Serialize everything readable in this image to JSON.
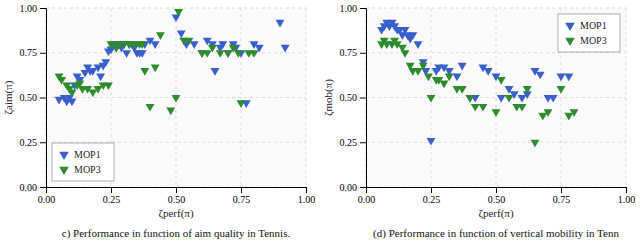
{
  "chart_data": [
    {
      "type": "scatter",
      "title": "c) Performance in function of aim quality in Tennis.",
      "x_label": "ζperf(π)",
      "y_label": "ζaim(π)",
      "xlim": [
        0.0,
        1.0
      ],
      "ylim": [
        0.0,
        1.0
      ],
      "xticks": [
        {
          "value": 0.0,
          "label": "0.00"
        },
        {
          "value": 0.25,
          "label": "0.25"
        },
        {
          "value": 0.5,
          "label": "0.50"
        },
        {
          "value": 0.75,
          "label": "0.75"
        },
        {
          "value": 1.0,
          "label": "1.00"
        }
      ],
      "yticks": [
        {
          "value": 0.0,
          "label": "0.00"
        },
        {
          "value": 0.25,
          "label": "0.25"
        },
        {
          "value": 0.5,
          "label": "0.50"
        },
        {
          "value": 0.75,
          "label": "0.75"
        },
        {
          "value": 1.0,
          "label": "1.00"
        }
      ],
      "grid": true,
      "legend": "lower left",
      "series": [
        {
          "name": "MOP1",
          "color": "#3a5fcd",
          "marker": "triangle-down",
          "x": [
            0.05,
            0.07,
            0.08,
            0.09,
            0.1,
            0.11,
            0.12,
            0.13,
            0.15,
            0.16,
            0.17,
            0.18,
            0.2,
            0.21,
            0.22,
            0.23,
            0.24,
            0.25,
            0.26,
            0.27,
            0.28,
            0.29,
            0.3,
            0.31,
            0.32,
            0.33,
            0.34,
            0.35,
            0.36,
            0.37,
            0.38,
            0.4,
            0.42,
            0.5,
            0.52,
            0.54,
            0.57,
            0.6,
            0.62,
            0.64,
            0.65,
            0.67,
            0.68,
            0.7,
            0.72,
            0.73,
            0.75,
            0.77,
            0.8,
            0.82,
            0.9,
            0.92
          ],
          "values": [
            0.49,
            0.5,
            0.48,
            0.5,
            0.48,
            0.57,
            0.62,
            0.6,
            0.64,
            0.67,
            0.65,
            0.65,
            0.67,
            0.62,
            0.68,
            0.7,
            0.76,
            0.77,
            0.8,
            0.78,
            0.8,
            0.78,
            0.8,
            0.75,
            0.8,
            0.8,
            0.78,
            0.75,
            0.75,
            0.75,
            0.8,
            0.82,
            0.8,
            0.95,
            0.86,
            0.8,
            0.8,
            0.75,
            0.82,
            0.8,
            0.65,
            0.78,
            0.8,
            0.75,
            0.8,
            0.78,
            0.75,
            0.47,
            0.8,
            0.78,
            0.92,
            0.78
          ]
        },
        {
          "name": "MOP3",
          "color": "#2e8b2e",
          "marker": "triangle-down",
          "x": [
            0.05,
            0.06,
            0.08,
            0.09,
            0.1,
            0.12,
            0.13,
            0.14,
            0.16,
            0.18,
            0.2,
            0.22,
            0.24,
            0.25,
            0.27,
            0.28,
            0.3,
            0.32,
            0.34,
            0.36,
            0.37,
            0.38,
            0.4,
            0.42,
            0.44,
            0.48,
            0.5,
            0.51,
            0.53,
            0.55,
            0.6,
            0.62,
            0.64,
            0.67,
            0.7,
            0.72,
            0.74,
            0.75,
            0.78,
            0.8
          ],
          "values": [
            0.62,
            0.6,
            0.57,
            0.55,
            0.53,
            0.57,
            0.58,
            0.55,
            0.55,
            0.53,
            0.55,
            0.57,
            0.57,
            0.8,
            0.78,
            0.8,
            0.8,
            0.8,
            0.8,
            0.8,
            0.8,
            0.65,
            0.45,
            0.67,
            0.85,
            0.43,
            0.5,
            0.98,
            0.82,
            0.82,
            0.75,
            0.75,
            0.78,
            0.75,
            0.75,
            0.78,
            0.75,
            0.47,
            0.75,
            0.75
          ]
        }
      ]
    },
    {
      "type": "scatter",
      "title": "(d) Performance in function of vertical mobility in Tenn",
      "x_label": "ζperf(π)",
      "y_label": "ζmob(π)",
      "xlim": [
        0.0,
        1.0
      ],
      "ylim": [
        0.0,
        1.0
      ],
      "xticks": [
        {
          "value": 0.0,
          "label": "0.00"
        },
        {
          "value": 0.25,
          "label": "0.25"
        },
        {
          "value": 0.5,
          "label": "0.50"
        },
        {
          "value": 0.75,
          "label": "0.75"
        },
        {
          "value": 1.0,
          "label": "1.00"
        }
      ],
      "yticks": [
        {
          "value": 0.0,
          "label": "0.00"
        },
        {
          "value": 0.25,
          "label": "0.25"
        },
        {
          "value": 0.5,
          "label": "0.50"
        },
        {
          "value": 0.75,
          "label": "0.75"
        },
        {
          "value": 1.0,
          "label": "1.00"
        }
      ],
      "grid": true,
      "legend": "upper right",
      "series": [
        {
          "name": "MOP1",
          "color": "#3a5fcd",
          "marker": "triangle-down",
          "x": [
            0.06,
            0.07,
            0.08,
            0.09,
            0.1,
            0.11,
            0.12,
            0.13,
            0.14,
            0.15,
            0.16,
            0.17,
            0.18,
            0.2,
            0.22,
            0.23,
            0.25,
            0.27,
            0.28,
            0.3,
            0.32,
            0.35,
            0.37,
            0.4,
            0.42,
            0.45,
            0.47,
            0.5,
            0.52,
            0.55,
            0.57,
            0.6,
            0.62,
            0.65,
            0.67,
            0.7,
            0.72,
            0.75,
            0.78
          ],
          "values": [
            0.88,
            0.9,
            0.92,
            0.9,
            0.92,
            0.9,
            0.88,
            0.88,
            0.85,
            0.88,
            0.85,
            0.83,
            0.85,
            0.8,
            0.7,
            0.65,
            0.26,
            0.65,
            0.67,
            0.67,
            0.65,
            0.62,
            0.68,
            0.5,
            0.5,
            0.67,
            0.65,
            0.62,
            0.5,
            0.55,
            0.52,
            0.5,
            0.52,
            0.65,
            0.63,
            0.5,
            0.5,
            0.62,
            0.62
          ]
        },
        {
          "name": "MOP3",
          "color": "#2e8b2e",
          "marker": "triangle-down",
          "x": [
            0.06,
            0.07,
            0.08,
            0.1,
            0.11,
            0.12,
            0.14,
            0.15,
            0.17,
            0.18,
            0.2,
            0.22,
            0.24,
            0.25,
            0.27,
            0.28,
            0.3,
            0.32,
            0.35,
            0.37,
            0.4,
            0.42,
            0.45,
            0.5,
            0.52,
            0.55,
            0.58,
            0.6,
            0.62,
            0.65,
            0.68,
            0.7,
            0.75,
            0.78,
            0.8
          ],
          "values": [
            0.8,
            0.82,
            0.8,
            0.8,
            0.82,
            0.8,
            0.78,
            0.75,
            0.68,
            0.65,
            0.65,
            0.68,
            0.62,
            0.5,
            0.6,
            0.6,
            0.58,
            0.62,
            0.55,
            0.55,
            0.5,
            0.45,
            0.45,
            0.42,
            0.6,
            0.5,
            0.45,
            0.45,
            0.55,
            0.25,
            0.4,
            0.42,
            0.55,
            0.4,
            0.42
          ]
        }
      ]
    }
  ]
}
